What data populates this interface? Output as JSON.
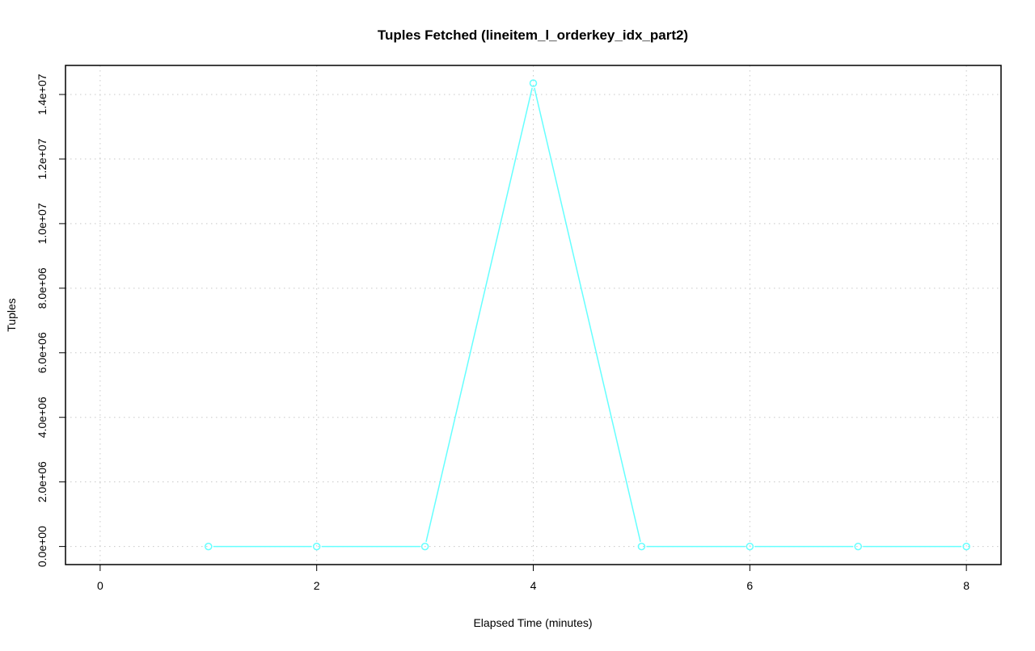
{
  "chart_data": {
    "type": "line",
    "title": "Tuples Fetched (lineitem_l_orderkey_idx_part2)",
    "xlabel": "Elapsed Time (minutes)",
    "ylabel": "Tuples",
    "xlim": [
      -0.32,
      8.32
    ],
    "ylim": [
      -560000,
      14900000
    ],
    "x_ticks": [
      0,
      2,
      4,
      6,
      8
    ],
    "x_tick_labels": [
      "0",
      "2",
      "4",
      "6",
      "8"
    ],
    "y_ticks": [
      0,
      2000000,
      4000000,
      6000000,
      8000000,
      10000000,
      12000000,
      14000000
    ],
    "y_tick_labels": [
      "0.0e+00",
      "2.0e+06",
      "4.0e+06",
      "6.0e+06",
      "8.0e+06",
      "1.0e+07",
      "1.2e+07",
      "1.4e+07"
    ],
    "grid": true,
    "series": [
      {
        "color": "#66ffff",
        "x": [
          1,
          2,
          3,
          4,
          5,
          6,
          7,
          8
        ],
        "y": [
          0,
          0,
          0,
          14350000,
          0,
          0,
          0,
          0
        ]
      }
    ]
  }
}
